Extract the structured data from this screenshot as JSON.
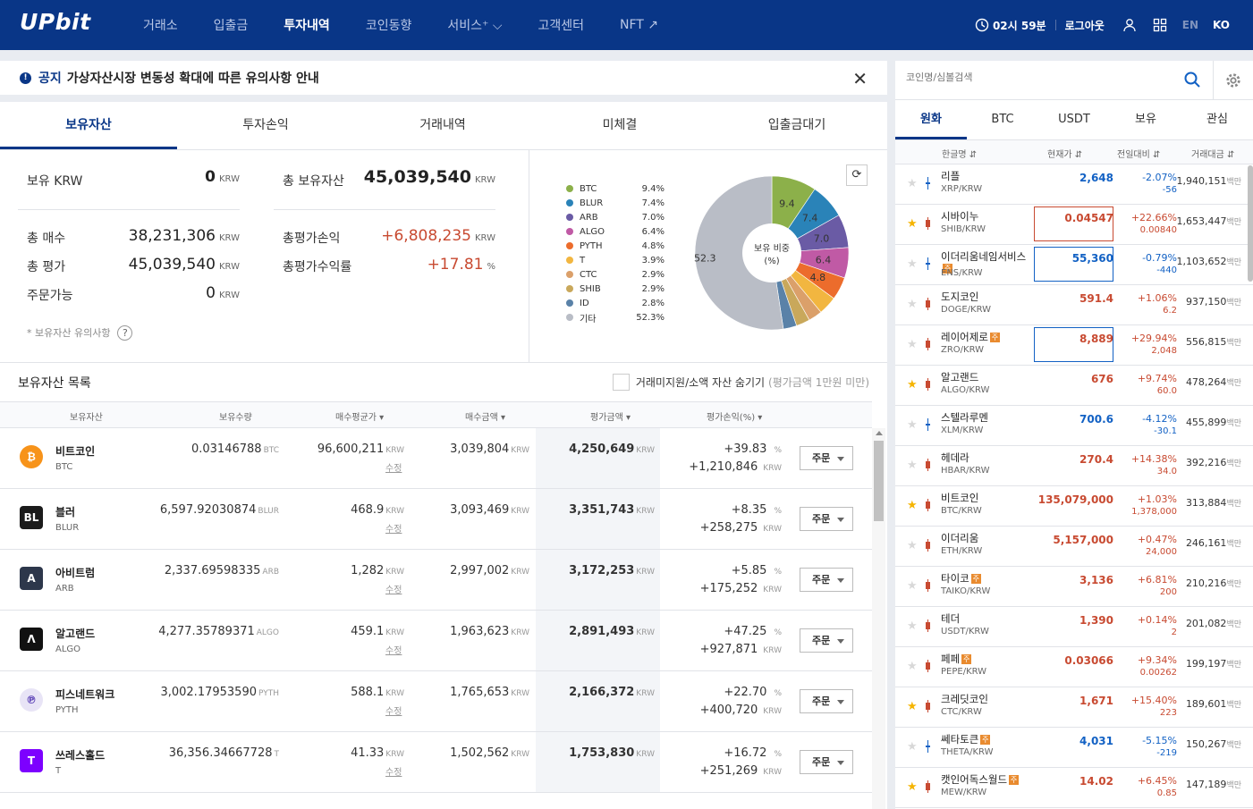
{
  "nav": {
    "logo": "UPbit",
    "menu": [
      "거래소",
      "입출금",
      "투자내역",
      "코인동향",
      "서비스⁺ ⌵",
      "고객센터",
      "NFT ↗"
    ],
    "active": 2,
    "timer": "02시 59분",
    "logout": "로그아웃",
    "lang_en": "EN",
    "lang_ko": "KO"
  },
  "notice": {
    "tag": "공지",
    "text": "가상자산시장 변동성 확대에 따른 유의사항 안내"
  },
  "tabs": [
    "보유자산",
    "투자손익",
    "거래내역",
    "미체결",
    "입출금대기"
  ],
  "summary": {
    "krw_label": "보유 KRW",
    "krw_value": "0",
    "total_asset_label": "총 보유자산",
    "total_asset_value": "45,039,540",
    "buy_label": "총 매수",
    "buy_value": "38,231,306",
    "pl_label": "총평가손익",
    "pl_value": "+6,808,235",
    "eval_label": "총 평가",
    "eval_value": "45,039,540",
    "rate_label": "총평가수익률",
    "rate_value": "+17.81",
    "avail_label": "주문가능",
    "avail_value": "0",
    "unit": "KRW",
    "pct": "%",
    "note": "* 보유자산 유의사항",
    "q": "?"
  },
  "chart_data": {
    "type": "pie",
    "center_label": "보유 비중\n(%)",
    "categories": [
      "BTC",
      "BLUR",
      "ARB",
      "ALGO",
      "PYTH",
      "T",
      "CTC",
      "SHIB",
      "ID",
      "기타"
    ],
    "legend_values": [
      "9.4%",
      "7.4%",
      "7.0%",
      "6.4%",
      "4.8%",
      "3.9%",
      "2.9%",
      "2.9%",
      "2.8%",
      "52.3%"
    ],
    "values": [
      9.4,
      7.4,
      7.0,
      6.4,
      4.8,
      3.9,
      2.9,
      2.9,
      2.8,
      52.3
    ],
    "colors": [
      "#8cb04a",
      "#2a83b8",
      "#6a5ba5",
      "#c05aa5",
      "#ec6c2c",
      "#f2b640",
      "#dba06a",
      "#c9a85b",
      "#5a82a8",
      "#b9bdc6"
    ],
    "slice_labels": [
      "9.4",
      "7.4",
      "7.0",
      "6.4",
      "4.8",
      "",
      "",
      "",
      "",
      "52.3"
    ]
  },
  "list": {
    "title": "보유자산 목록",
    "hide_label": "거래미지원/소액 자산 숨기기",
    "hide_note": "(평가금액 1만원 미만)",
    "headers": [
      "보유자산",
      "보유수량",
      "매수평균가 ▾",
      "매수금액 ▾",
      "평가금액 ▾",
      "평가손익(%) ▾"
    ],
    "edit": "수정",
    "order": "주문",
    "rows": [
      {
        "name": "비트코인",
        "sym": "BTC",
        "qty": "0.03146788",
        "qunit": "BTC",
        "avg": "96,600,211",
        "buy": "3,039,804",
        "eval": "4,250,649",
        "pct": "+39.83",
        "pl": "+1,210,846",
        "icon": "₿",
        "icolor": "#f7931a"
      },
      {
        "name": "블러",
        "sym": "BLUR",
        "qty": "6,597.92030874",
        "qunit": "BLUR",
        "avg": "468.9",
        "buy": "3,093,469",
        "eval": "3,351,743",
        "pct": "+8.35",
        "pl": "+258,275",
        "icon": "BL",
        "icolor": "#1b1b1b"
      },
      {
        "name": "아비트럼",
        "sym": "ARB",
        "qty": "2,337.69598335",
        "qunit": "ARB",
        "avg": "1,282",
        "buy": "2,997,002",
        "eval": "3,172,253",
        "pct": "+5.85",
        "pl": "+175,252",
        "icon": "A",
        "icolor": "#2d374b"
      },
      {
        "name": "알고랜드",
        "sym": "ALGO",
        "qty": "4,277.35789371",
        "qunit": "ALGO",
        "avg": "459.1",
        "buy": "1,963,623",
        "eval": "2,891,493",
        "pct": "+47.25",
        "pl": "+927,871",
        "icon": "Λ",
        "icolor": "#111"
      },
      {
        "name": "피스네트워크",
        "sym": "PYTH",
        "qty": "3,002.17953590",
        "qunit": "PYTH",
        "avg": "588.1",
        "buy": "1,765,653",
        "eval": "2,166,372",
        "pct": "+22.70",
        "pl": "+400,720",
        "icon": "℗",
        "icolor": "#e8e4f6"
      },
      {
        "name": "쓰레스홀드",
        "sym": "T",
        "qty": "36,356.34667728",
        "qunit": "T",
        "avg": "41.33",
        "buy": "1,502,562",
        "eval": "1,753,830",
        "pct": "+16.72",
        "pl": "+251,269",
        "icon": "T",
        "icolor": "#7d00ff"
      }
    ]
  },
  "market": {
    "search_placeholder": "코인명/심볼검색",
    "tabs": [
      "원화",
      "BTC",
      "USDT",
      "보유",
      "관심"
    ],
    "headers": [
      "한글명 ⇵",
      "현재가 ⇵",
      "전일대비 ⇵",
      "거래대금 ⇵"
    ],
    "vol_unit": "백만",
    "rows": [
      {
        "name": "리플",
        "pair": "XRP/KRW",
        "price": "2,648",
        "chg": "-2.07%",
        "chg2": "-56",
        "vol": "1,940,151",
        "dir": "down",
        "star": false,
        "badge": false,
        "box": false
      },
      {
        "name": "시바이누",
        "pair": "SHIB/KRW",
        "price": "0.04547",
        "chg": "+22.66%",
        "chg2": "0.00840",
        "vol": "1,653,447",
        "dir": "up",
        "star": true,
        "badge": false,
        "box": "up"
      },
      {
        "name": "이더리움네임서비스",
        "pair": "ENS/KRW",
        "price": "55,360",
        "chg": "-0.79%",
        "chg2": "-440",
        "vol": "1,103,652",
        "dir": "down",
        "star": false,
        "badge": true,
        "box": "down"
      },
      {
        "name": "도지코인",
        "pair": "DOGE/KRW",
        "price": "591.4",
        "chg": "+1.06%",
        "chg2": "6.2",
        "vol": "937,150",
        "dir": "up",
        "star": false,
        "badge": false,
        "box": false
      },
      {
        "name": "레이어제로",
        "pair": "ZRO/KRW",
        "price": "8,889",
        "chg": "+29.94%",
        "chg2": "2,048",
        "vol": "556,815",
        "dir": "up",
        "star": false,
        "badge": true,
        "box": "down"
      },
      {
        "name": "알고랜드",
        "pair": "ALGO/KRW",
        "price": "676",
        "chg": "+9.74%",
        "chg2": "60.0",
        "vol": "478,264",
        "dir": "up",
        "star": true,
        "badge": false,
        "box": false
      },
      {
        "name": "스텔라루멘",
        "pair": "XLM/KRW",
        "price": "700.6",
        "chg": "-4.12%",
        "chg2": "-30.1",
        "vol": "455,899",
        "dir": "down",
        "star": false,
        "badge": false,
        "box": false
      },
      {
        "name": "헤데라",
        "pair": "HBAR/KRW",
        "price": "270.4",
        "chg": "+14.38%",
        "chg2": "34.0",
        "vol": "392,216",
        "dir": "up",
        "star": false,
        "badge": false,
        "box": false
      },
      {
        "name": "비트코인",
        "pair": "BTC/KRW",
        "price": "135,079,000",
        "chg": "+1.03%",
        "chg2": "1,378,000",
        "vol": "313,884",
        "dir": "up",
        "star": true,
        "badge": false,
        "box": false
      },
      {
        "name": "이더리움",
        "pair": "ETH/KRW",
        "price": "5,157,000",
        "chg": "+0.47%",
        "chg2": "24,000",
        "vol": "246,161",
        "dir": "up",
        "star": false,
        "badge": false,
        "box": false
      },
      {
        "name": "타이코",
        "pair": "TAIKO/KRW",
        "price": "3,136",
        "chg": "+6.81%",
        "chg2": "200",
        "vol": "210,216",
        "dir": "up",
        "star": false,
        "badge": true,
        "box": false
      },
      {
        "name": "테더",
        "pair": "USDT/KRW",
        "price": "1,390",
        "chg": "+0.14%",
        "chg2": "2",
        "vol": "201,082",
        "dir": "up",
        "star": false,
        "badge": false,
        "box": false
      },
      {
        "name": "페페",
        "pair": "PEPE/KRW",
        "price": "0.03066",
        "chg": "+9.34%",
        "chg2": "0.00262",
        "vol": "199,197",
        "dir": "up",
        "star": false,
        "badge": true,
        "box": false
      },
      {
        "name": "크레딧코인",
        "pair": "CTC/KRW",
        "price": "1,671",
        "chg": "+15.40%",
        "chg2": "223",
        "vol": "189,601",
        "dir": "up",
        "star": true,
        "badge": false,
        "box": false
      },
      {
        "name": "쎄타토큰",
        "pair": "THETA/KRW",
        "price": "4,031",
        "chg": "-5.15%",
        "chg2": "-219",
        "vol": "150,267",
        "dir": "down",
        "star": false,
        "badge": true,
        "box": false
      },
      {
        "name": "캣인어독스월드",
        "pair": "MEW/KRW",
        "price": "14.02",
        "chg": "+6.45%",
        "chg2": "0.85",
        "vol": "147,189",
        "dir": "up",
        "star": true,
        "badge": true,
        "box": false
      }
    ]
  }
}
